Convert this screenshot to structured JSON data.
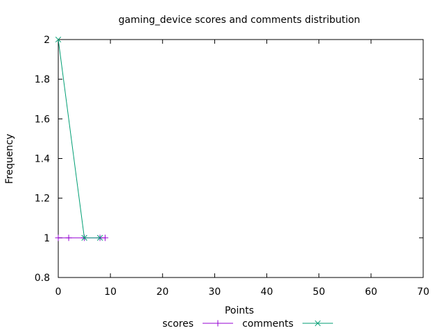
{
  "chart_data": {
    "type": "line",
    "title": "gaming_device scores and comments distribution",
    "xlabel": "Points",
    "ylabel": "Frequency",
    "xlim": [
      0,
      70
    ],
    "ylim": [
      0.8,
      2
    ],
    "xticks": [
      0,
      10,
      20,
      30,
      40,
      50,
      60,
      70
    ],
    "yticks": [
      0.8,
      1,
      1.2,
      1.4,
      1.6,
      1.8,
      2
    ],
    "xtick_labels": [
      "0",
      "10",
      "20",
      "30",
      "40",
      "50",
      "60",
      "70"
    ],
    "ytick_labels": [
      "0.8",
      "1",
      "1.2",
      "1.4",
      "1.6",
      "1.8",
      "2"
    ],
    "grid": false,
    "legend_position": "bottom-center",
    "series": [
      {
        "name": "scores",
        "color": "#9400d3",
        "marker": "plus",
        "x": [
          0,
          2,
          5,
          8,
          9
        ],
        "y": [
          1,
          1,
          1,
          1,
          1
        ]
      },
      {
        "name": "comments",
        "color": "#009e73",
        "marker": "cross",
        "x": [
          0,
          5,
          8
        ],
        "y": [
          2,
          1,
          1
        ]
      }
    ]
  }
}
